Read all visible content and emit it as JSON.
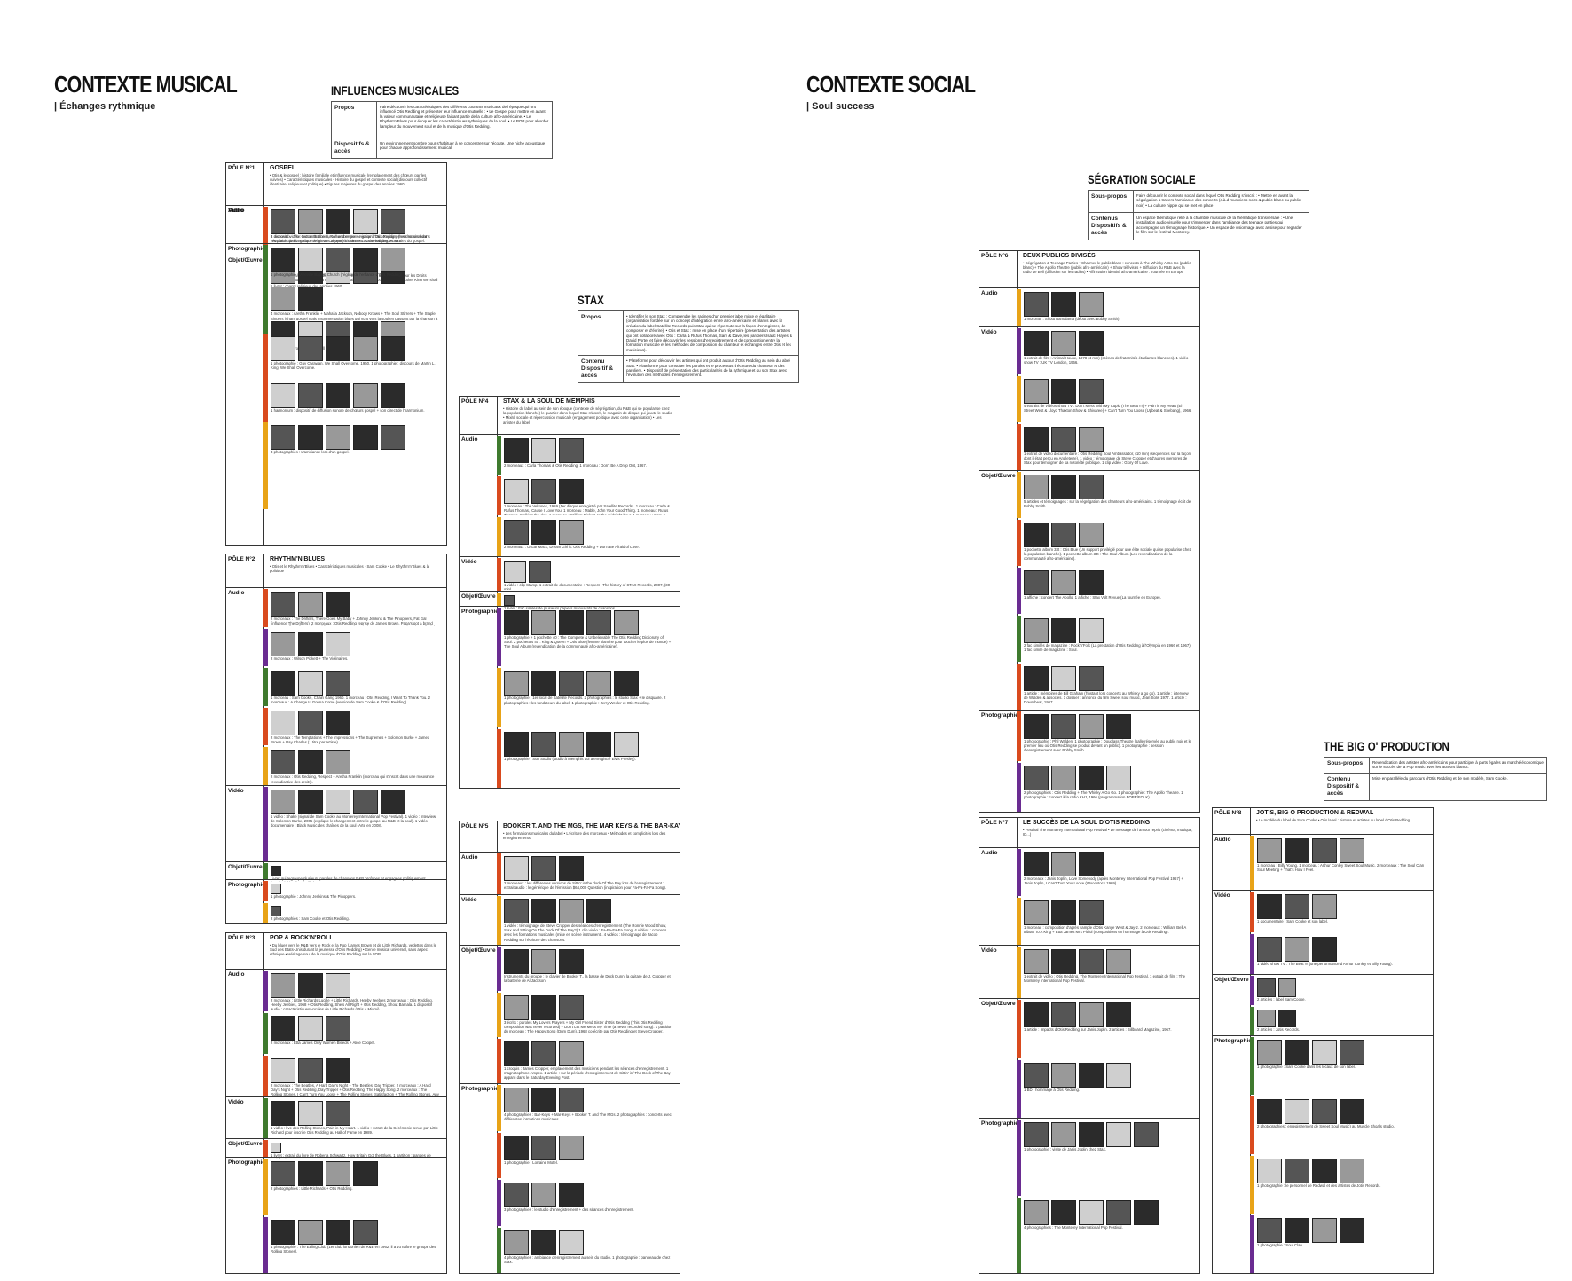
{
  "musical": {
    "title": "CONTEXTE MUSICAL",
    "subtitle": "| Échanges rythmique",
    "influences": {
      "title": "INFLUENCES MUSICALES",
      "rows": [
        {
          "label": "Propos",
          "text": "Faire découvrir les caractéristiques des différents courants musicaux de l'époque qui ont influencé Otis Redding et présenter leur influence mutuelle : • Le Gospel pour mettre en avant la valeur communautaire et religieuse faisant partie de la culture afro-américaine. • Le Rhythm'n'Blues pour évoquer les caractéristiques rythmiques de la soul. • Le POP pour aborder l'ampleur du mouvement soul et de la musique d'Otis Redding."
        },
        {
          "label": "Dispositifs & accès",
          "text": "Un environnement sombre pour s'habituer à se concentrer sur l'écoute. Une niche acoustique pour chaque approfondissement musical."
        }
      ]
    },
    "stax": {
      "title": "STAX",
      "rows": [
        {
          "label": "Propos",
          "text": "• Identifier le son Stax : Comprendre les racines d'un premier label mixte et égalitaire (organisation fondée sur un concept d'intégration entre afro-américains et blancs avec la création du label Satellite Records puis Stax qui se répercute sur la façon d'enregistrer, de composer et d'écrire). • Otis et Stax : mise en place d'un répertoire (présentation des artistes qui ont collaboré avec Otis : Carla & Rufus Thomas, Sam & Dave, les paroliers Isaac Hayes & David Porter et faire découvrir les sessions d'enregistrement et de composition entre la formation musicale et les méthodes de composition du chanteur et échanges entre Otis et les musiciens)."
        },
        {
          "label": "Contenu Dispositif & accès",
          "text": "• Plateforme pour découvrir les artistes qui ont produit autour d'Otis Redding au sein du label Stax. • Plateforme pour consulter les paroles et le processus d'écriture du chanteur et des paroliers. • Dispositif de présentation des particularités de la rythmique et du son Stax avec l'évolution des méthodes d'enregistrement."
        }
      ]
    }
  },
  "social": {
    "title": "CONTEXTE SOCIAL",
    "subtitle": "| Soul success",
    "segregation": {
      "title": "SÉGRATION SOCIALE",
      "rows": [
        {
          "label": "Sous-propos",
          "text": "Faire découvrir le contexte social dans lequel Otis Redding s'inscrit : • Mettre en avant la ségrégation à travers l'ambiance des concerts (c.à.d musiciens noirs & public blanc ou public noir) • La culture hippie qui se met en place"
        },
        {
          "label": "Contenus Dispositifs & accès",
          "text": "Un espace thématique relié à la chambre musicale de la thématique transversale : • Une installation audio-visuelle pour s'immerger dans l'ambiance des teenage parties qui accompagne un témoignage historique. • Un espace de visionnage avec assise pour regarder le film sur le festival Monterey."
        }
      ]
    },
    "bigo": {
      "title": "THE BIG O' PRODUCTION",
      "rows": [
        {
          "label": "Sous-propos",
          "text": "Revendication des artistes afro-américains pour participer à parts égales au marché économique sur le succès de la Pop music avec les acteurs blancs."
        },
        {
          "label": "Contenu Dispositif & accès",
          "text": "Mise en parallèle du parcours d'Otis Redding et de son modèle, Sam Cooke."
        }
      ]
    }
  },
  "poles": [
    {
      "id": "p1",
      "label": "PÔLE N°1",
      "title": "GOSPEL",
      "intro": "• Otis & le gospel : histoire familiale et influence musicale (remplacement des chœurs par les cuivres) • Caractéristiques musicales • Histoire du gospel et contexte social (discours collectif identitaire, religieux et politique) • Figures majeures du gospel des années 1960",
      "sections": [
        {
          "label": "Audio",
          "captions": [
            "2 morceaux : The Cotton Brothers, Remember me + reprise d'Otis Redding (les chœurs sont remplacés par la guitare de Steve Cropper) 1 morceau : Otis Redding, Amen.",
            "1 morceau : Charles Albert Tindley, We shall Overcome (hymne de la marche pour les Droits civiques de Matthin Luther King en 1963) 1 extrait sonore : discours de Martin Luther King We shall Overcome.",
            "4 morceaux : Aretha Franklin + Mahalia Jackson, Nobody Knows + The Soul Stirrers + The Staple Singers (chant gospel mais instrumentation blues qui vont vers la soul en passant par la chanson à message)."
          ]
        },
        {
          "label": "Vidéo",
          "captions": [
            "1 dispositif vidéo : reconstitution du call and response jusqu'à l'accompagnement musical dans l'évolution de la musique religieuse afro-américaine + caractéristiques musicales du gospel."
          ]
        },
        {
          "label": "Objet/Œuvre",
          "captions": [
            "1 livret : chants religieux des années 1960.",
            "1 partition : paroles de We Shall Overcome.",
            "1 harmonium : dispositif de diffusion sonore de chœurs gospel + son direct de l'harmonium."
          ]
        },
        {
          "label": "Photographie",
          "captions": [
            "1 photographie : Vineville Baptist Church (l'église de l'enfance d'Otis Redding).",
            "1 photographie : Guy Carawan, We Shall Overcome, 1960. 1 photographie : discours de Martin L. King, We Shall Overcome.",
            "3 photographies : L'ambiance lors d'un gospel."
          ]
        }
      ]
    },
    {
      "id": "p2",
      "label": "PÔLE N°2",
      "title": "RHYTHM'N'BLUES",
      "intro": "• Otis et le Rhythm'n'Blues • Caractéristiques musicales • Sam Cooke • Le Rhythm'n'Blues & la politique",
      "sections": [
        {
          "label": "Audio",
          "captions": [
            "2 morceaux : The Drifters, There Goes My Baby + Johnny Jenkins & The Pinoppers, Fat Gal (influence The Drifters). 2 morceaux : Otis Redding reprise de James Brown, Papa's got a brand new bag (album live : Otis Redding In Person At the Whisky A Go Go, Atco, 1968) + She's All Right + Tuff Enuff (deux titres R&B enregistrés avec The Shooters au début de sa carrière).",
            "2 morceaux : Wilson Pickett + The Violinaires.",
            "1 morceau : Sam Cooke, Chain Gang 1960. 1 morceau : Otis Redding, I Want To Thank You. 2 morceaux : A Change Is Gonna Come (version de Sam Cooke & d'Otis Redding).",
            "2 morceaux : The Temptations + The Impressions + The Supremes + Solomon Burke + James Brown + Ray Charles (1 titre par artiste).",
            "2 morceaux : Otis Redding, Respect + Aretha Franklin (morceau qui s'inscrit dans une mouvance revendicative des droits)."
          ]
        },
        {
          "label": "Vidéo",
          "captions": [
            "1 vidéo : Shake (signal de Sam Cooke au Monterey International Pop Festival). 1 vidéo : interview de Solomon Burke, 2005 (explique le changement entre le gospel au R&B et la soul). 1 vidéo documentaire : Black Music des chaînes de la soul (Arte en 2008)."
          ]
        },
        {
          "label": "Objet/Œuvre",
          "captions": [
            "Livret qui regroupe plusieurs paroles de chansons R&B profanes et engagées politiquement (manipulable : fac similés)."
          ]
        },
        {
          "label": "Photographie",
          "captions": [
            "1 photographie : Johnny Jenkins & The Pinoppers.",
            "2 photographies : Sam Cooke et Otis Redding."
          ]
        }
      ]
    },
    {
      "id": "p3",
      "label": "PÔLE N°3",
      "title": "POP & ROCK'N'ROLL",
      "intro": "• Du blues vers le R&B vers le Rock et la Pop (James Brown et de Little Richards, vedettes dans le Sud des Etats-Unis durant la jeunesse d'Otis Redding) • Genre musical universel, sans aspect ethnique • Héritage soul de la musique d'Otis Redding sur la POP",
      "sections": [
        {
          "label": "Audio",
          "captions": [
            "2 morceaux : Little Richards Lucille + Little Richards, Heeby Jeebies 2 morceaux : Otis Redding, Heeby Jeebies, 1968 + Otis Redding, She's All Right + Otis Redding, Shout Bamala. 1 dispositif audio : caractéristiques vocales de Little Richards (Otis + Miami).",
            "2 morceaux : Etta James Only Women Bleeds + Alice Cooper.",
            "2 morceaux : The Beatles, A Hard Day's Night + The Beatles, Day Tripper. 2 morceaux : A Hard Day's Night + Otis Redding, Day Tripper + Otis Redding, The Happy Song. 2 morceaux : The Rolling Stones, I Can't Turn You Loose + The Rolling Stones, Satisfaction + The Rolling Stones, Any Day Now. 2 morceaux : Otis Redding, I Can't Turn You Loose + Otis Redding, Satisfaction + Otis Redding, Any Ole Way."
          ]
        },
        {
          "label": "Vidéo",
          "captions": [
            "1 vidéo : live des Rolling Stones, Pain in My Heart. 1 vidéo : extrait de la Cérémonie tenue par Little Richard pour inscrire Otis Redding au Hall of Fame en 1989."
          ]
        },
        {
          "label": "Objet/Œuvre",
          "captions": [
            "1 livret : extrait du livre de Roberta Schwartz, How Britain Got the Blues. 1 partition : paroles de Satisfaction."
          ]
        },
        {
          "label": "Photographie",
          "captions": [
            "2 photographies : Little Richards + Otis Redding.",
            "1 photographie : The Ealing Club (1er club londonien de R&B en 1962, il a vu naître le groupe des Rolling Stones)."
          ]
        }
      ]
    },
    {
      "id": "p4",
      "label": "PÔLE N°4",
      "title": "STAX & LA SOUL DE MEMPHIS",
      "intro": "• Histoire du label au sein de son époque (contexte de ségrégation, du R&B qui se popularise chez la population blanche) le quartier dans lequel Stax s'inscrit, le magasin de disque qui jouxte le studio • Mixité sociale et répercussion musicale (engagement politique avec cette organisation) • Les artistes du label",
      "sections": [
        {
          "label": "Audio",
          "captions": [
            "2 morceaux : Carla Thomas & Otis Redding. 1 morceau : Don't Be A Drop Out, 1967.",
            "1 morceau : The Veltones, 1959 (1er disque enregistré par Satellite Records). 1 morceau : Carla & Rufus Thomas, 'Cause I Love You. 1 morceau : Mable, John Your Good Thing. 1 morceau : Rufus Thomas, Walking the dog. 1 morceau : William Pickett, In the midnight hour. 1 morceau : Sam & Dave, Soul Man. 1 morceau : Eddie Floyd, Knock on Wood. 1 morceau : Booker T. & The MGs, Green Onions. 1 morceau : Carla Thomas, Gee Whiz. 1 morceau : William Bell, You Don't Miss Your Water (1er morceau Stax en 1961).",
            "2 morceaux : Oscar Mack, Dream Girl ft. Otis Redding + Don't Be Afraid of Love."
          ]
        },
        {
          "label": "Vidéo",
          "captions": [
            "1 vidéo : clip Stamp. 1 extrait de documentaire : Respect ; The history of STAX Records, 2007, (30 min)."
          ]
        },
        {
          "label": "Objet/Œuvre",
          "captions": [
            "1 livret : Fac similés de plusieurs papiers manuscrits de chansons."
          ]
        },
        {
          "label": "Photographie",
          "captions": [
            "1 photographie + 1 pochette 40 : The Complete & Unbelievable The Otis Redding Dictionary of Soul. 2 pochettes 40 : King & Queen + Otis Blue (femme blanche pour toucher le plus de monde) + The Soul Album (revendication de la communauté afro-américaine).",
            "1 photographie : 1er local de Satellite Records. 2 photographies : le studio Stax + le disquaire. 2 photographies : les fondateurs du label. 1 photographie : Jerry Wexler et Otis Redding.",
            "1 photographie : Sun Studio (studio à Memphis qui a enregistré Elvis Presley)."
          ]
        }
      ]
    },
    {
      "id": "p5",
      "label": "PÔLE N°5",
      "title": "BOOKER T. AND THE MGS, THE MAR KEYS & THE BAR-KAYS",
      "intro": "• Les formations musicales du label • L'écriture des morceaux • Méthodes et complicités lors des enregistrements",
      "sections": [
        {
          "label": "Audio",
          "captions": [
            "2 morceaux : les différentes versions de Sittin' in the dock Of The Bay lors de l'enregistrement 1 extrait audio : le générique de l'émission $64,000 Question (inspiration pour Fa-Fa-Fa-Fa Song)."
          ]
        },
        {
          "label": "Vidéo",
          "captions": [
            "1 vidéo : témoignage de Steve Cropper des séances d'enregistrement (The Ronnie Wood Show, Stax and Sitting On The Dock Of The Bay?) 1 clip vidéo : Fa-Fa-Fa-Fa Song. 4 vidéos : concerts avec les formations musicales (mise en scène instrument). 4 vidéos : témoignage de Jacob Redding sur l'écriture des chansons."
          ]
        },
        {
          "label": "Objet/Œuvre",
          "captions": [
            "Instruments du groupe : le clavier de Booker T., la basse de Duck Dunn, la guitare de J. Cropper et la batterie de Al Jackson.",
            "3 écrits : paroles My Lovers Prayers + My Girl Friend Sister d'Otis Redding (This Otis Redding composition was never recorded) + Don't Let Me Mess My Time (a never recorded song). 1 partition du morceau : The Happy Song (Dum Dum), 1968 co-écrite par Otis Redding et Steve Cropper.",
            "1 croquis : James Cropper, emplacement des musiciens pendant les séances d'enregistrement. 1 magnétophone Ampex. 1 article : sur la période d'enregistrement de Sittin' in/ The Dock of The Bay apparu dans le Saturday Evening Post."
          ]
        },
        {
          "label": "Photographie",
          "captions": [
            "4 photographies : Bar-Keys + Mar-Keys + Booker T. and The MGs. 2 photographies : concerts avec différentes formations musicales.",
            "1 photographie : Lorraine Motel.",
            "3 photographies : le studio d'enregistrement + des séances d'enregistrement.",
            "4 photographies : ambiance d'enregistrement au sein du studio. 1 photographie : panneau de chez Stax."
          ]
        }
      ]
    },
    {
      "id": "p6",
      "label": "PÔLE N°6",
      "title": "DEUX PUBLICS DIVISÉS",
      "intro": "• Ségrégation & Teenage Parties • Charmer le public blanc : concerts à The Whisky A Go Go (public blanc) + The Apollo Theatre (public afro-américain) + Show télévisés + Diffusion du R&B avec la radio de Bell (diffusion sur les radios) • Affirmation identité afro-américaine : Tournée en Europe",
      "sections": [
        {
          "label": "Audio",
          "captions": [
            "1 morceau : Shout Bamalama (début avec Bobby Smith)."
          ]
        },
        {
          "label": "Vidéo",
          "captions": [
            "1 extrait de film : Animal House, 1978 (4 min) (scènes de fraternités étudiantes blanches). 1 vidéo show TV : UK TV London, 1966.",
            "4 extraits de vidéos show TV : Don't Mess With My Cupid (The Beat !!!) + Pain in My Heart (Eh Street West & Lloyd Thaxton Show & Shivaree) + Can't Turn You Loose (Upbeat & Shebang), 1966.",
            "1 extrait de vidéo documentaire : Otis Redding Soul Ambassador, (10 min) (séquences sur la façon dont il était perçu en Angleterre). 1 vidéo : témoignage de Steve Cropper et d'autres membres de Stax pour témoigner de sa notoriété publique. 1 clip vidéo : Glory Of Love."
          ]
        },
        {
          "label": "Objet/Œuvre",
          "captions": [
            "5 articles et témoignages : sur la ségrégation des chanteurs afro-américains. 1 témoignage écrit de Bobby Smith.",
            "1 pochette album 33t : Otis Blue (Un support privilégié pour une élite sociale qui se popularise chez la population blanche). 1 pochette album 33t : The Soul Album (Les revendications de la communauté afro-américaine).",
            "1 affiche : concert The Apollo. 1 affiche : Stax Volt Revue (La tournée en Europe).",
            "2 fac similés de magazine : Rock'n'Folk (La prestation d'Otis Redding à l'Olympia en 1966 et 1967). 1 fac similé de magazine : Soul.",
            "1 article : mémoires de Bill Graham (l'instant lors concerts au Whisky a go go). 1 article : interview de Walden & associés. 1 dossier : annonce du film Sweet soul music, Jean Solis 1977. 1 article : Down beat, 1967."
          ]
        },
        {
          "label": "Photographie",
          "captions": [
            "1 photographie : Phil Walden. 1 photographie : Douglass Theatre (salle réservée au public noir et le premier lieu où Otis Redding se produit devant un public). 1 photographie : session d'enregistrement avec Bobby Smith.",
            "2 photographies : Otis Redding + The Whisky A Go Go. 1 photographie : The Apollo Theatre. 1 photographie : concert à la radio KHJ, 1966 (programmation POPR/FOLK)."
          ]
        }
      ]
    },
    {
      "id": "p7",
      "label": "PÔLE N°7",
      "title": "LE SUCCÈS DE LA SOUL D'OTIS REDDING",
      "intro": "• Festival The Monterey International Pop Festival • Le message de l'amour repris (cinéma, musique, ID...)",
      "sections": [
        {
          "label": "Audio",
          "captions": [
            "2 morceaux : Janis Joplin, Love Somebody (après Monterey International Pop Festival 1967) + Janis Joplin, I Can't Turn You Loose (Woodstock 1969).",
            "1 morceau : composition d'après sample d'Otis Kanye West & Jay-z. 2 morceaux : William Bell A tribute To A King + Etta James Mrs Pitiful (compositions en hommage à Otis Redding)."
          ]
        },
        {
          "label": "Vidéo",
          "captions": [
            "1 extrait de vidéo : Otis Redding, The Monterey International Pop Festival. 1 extrait de film : The Monterey International Pop Festival."
          ]
        },
        {
          "label": "Objet/Œuvre",
          "captions": [
            "1 article : Impacts d'Otis Redding sur Janis Joplin. 2 articles : Billboard Magazine, 1967.",
            "1 BD : hommage à Otis Redding."
          ]
        },
        {
          "label": "Photographie",
          "captions": [
            "1 photographie : visite de Janis Joplin chez Stax.",
            "4 photographies : The Monterey International Pop Festival."
          ]
        }
      ]
    },
    {
      "id": "p8",
      "label": "PÔLE N°8",
      "title": "JOTIS, BIG O PRODUCTION & REDWAL",
      "intro": "• Le modèle du label de Sam Cooke • Otis label : histoire et artistes du label d'Otis Redding",
      "sections": [
        {
          "label": "Audio",
          "captions": [
            "1 morceau : Billy Young. 1 morceau : Arthur Conley Sweet Soul Music. 2 morceaux : The Soul Clan Soul Meeting + That's How I Feel."
          ]
        },
        {
          "label": "Vidéo",
          "captions": [
            "1 documentaire : Sam Cooke et son label.",
            "1 vidéo show TV : The Beat !!! (une performance d'Arthur Conley et Billy Young)."
          ]
        },
        {
          "label": "Objet/Œuvre",
          "captions": [
            "2 articles : label Sam Cooke.",
            "2 articles : Jotis Records."
          ]
        },
        {
          "label": "Photographie",
          "captions": [
            "1 photographie : Sam Cooke dans les locaux de son label.",
            "2 photographies : enregistrement de Sweet Soul Music) au Muscle Shoals studio.",
            "1 photographie : le personnel de Redwal et des artistes de Jotis Records.",
            "1 photographie : Soul Clan."
          ]
        }
      ]
    }
  ]
}
